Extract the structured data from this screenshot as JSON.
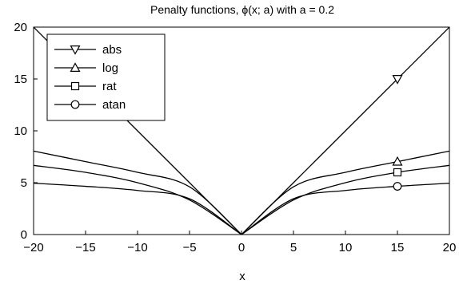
{
  "chart_data": {
    "type": "line",
    "title": "Penalty functions, ϕ(x; a) with a = 0.2",
    "xlabel": "x",
    "ylabel": "",
    "xlim": [
      -20,
      20
    ],
    "ylim": [
      0,
      20
    ],
    "xticks": [
      -20,
      -15,
      -10,
      -5,
      0,
      5,
      10,
      15,
      20
    ],
    "xtick_labels": [
      "−20",
      "−15",
      "−10",
      "−5",
      "0",
      "5",
      "10",
      "15",
      "20"
    ],
    "yticks": [
      0,
      5,
      10,
      15,
      20
    ],
    "ytick_labels": [
      "0",
      "5",
      "10",
      "15",
      "20"
    ],
    "grid": false,
    "legend_position": "top-left",
    "a": 0.2,
    "series": [
      {
        "name": "abs",
        "marker": "triangle-down",
        "x": [
          -20,
          -15,
          -10,
          -5,
          0,
          5,
          10,
          15,
          20
        ],
        "y": [
          20,
          15,
          10,
          5,
          0,
          5,
          10,
          15,
          20
        ],
        "marker_points": [
          [
            15,
            15
          ]
        ]
      },
      {
        "name": "log",
        "marker": "triangle-up",
        "x": [
          -20,
          -15,
          -10,
          -5,
          0,
          5,
          10,
          15,
          20
        ],
        "y": [
          8.05,
          7.03,
          6.0,
          4.6,
          0,
          4.6,
          6.0,
          7.03,
          8.05
        ],
        "marker_points": [
          [
            15,
            7.03
          ]
        ]
      },
      {
        "name": "rat",
        "marker": "square",
        "x": [
          -20,
          -15,
          -10,
          -5,
          0,
          5,
          10,
          15,
          20
        ],
        "y": [
          6.67,
          6.0,
          5.0,
          3.33,
          0,
          3.33,
          5.0,
          6.0,
          6.67
        ],
        "marker_points": [
          [
            15,
            6.0
          ]
        ]
      },
      {
        "name": "atan",
        "marker": "circle",
        "x": [
          -20,
          -15,
          -10,
          -5,
          0,
          5,
          10,
          15,
          20
        ],
        "y": [
          4.95,
          4.65,
          4.25,
          3.45,
          0,
          3.45,
          4.25,
          4.65,
          4.95
        ],
        "marker_points": [
          [
            15,
            4.65
          ]
        ]
      }
    ]
  }
}
